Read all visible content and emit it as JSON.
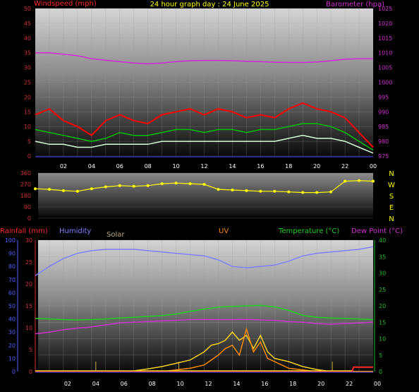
{
  "title": "24 hour graph day : 24 June 2025",
  "colors": {
    "background": "#000000",
    "windspeed_label": "#ff2a2a",
    "barometer_label": "#d030d0",
    "wind_gust": "#ff0000",
    "wind_avg": "#00c000",
    "wind_speed": "#d8ffd8",
    "barometer": "#d028d8",
    "direction": "#ffff00",
    "compass": "#ffff00",
    "rainfall": "#ff2a2a",
    "humidity": "#8080ff",
    "solar": "#b8a878",
    "uv": "#ff8a00",
    "temperature": "#20d020",
    "dewpoint": "#d030d0",
    "axis_left": "#d03030",
    "axis_right": "#d030d0",
    "axis_green": "#20c020",
    "axis_blue": "#5060ff",
    "xaxis": "#4040ff"
  },
  "legend": {
    "windspeed": "Windspeed (mph)",
    "barometer": "Barometer (hpa)",
    "rainfall": "Rainfall (mm)",
    "humidity": "Humidity",
    "solar": "Solar",
    "uv": "UV",
    "temperature": "Temperature (°C)",
    "dewpoint": "Dew Point (°C)"
  },
  "compass_labels": [
    "N",
    "W",
    "S",
    "E",
    "N"
  ],
  "chart_data": [
    {
      "type": "line",
      "name": "wind",
      "x_ticks": [
        "02",
        "04",
        "06",
        "08",
        "10",
        "12",
        "14",
        "16",
        "18",
        "20",
        "22",
        "00"
      ],
      "x_range": [
        0,
        24
      ],
      "y_left": {
        "label": "Windspeed (mph)",
        "range": [
          0,
          50
        ],
        "ticks": [
          0,
          5,
          10,
          15,
          20,
          25,
          30,
          35,
          40,
          45,
          50
        ]
      },
      "y_right": {
        "label": "Barometer (hpa)",
        "range": [
          975,
          1025
        ],
        "ticks": [
          975,
          980,
          985,
          990,
          995,
          1000,
          1005,
          1010,
          1015,
          1020,
          1025
        ]
      },
      "series": [
        {
          "name": "Barometer",
          "axis": "right",
          "x": [
            0,
            1,
            2,
            3,
            4,
            5,
            6,
            7,
            8,
            9,
            10,
            11,
            12,
            13,
            14,
            15,
            16,
            17,
            18,
            19,
            20,
            21,
            22,
            23,
            24
          ],
          "y": [
            1010,
            1010,
            1009.5,
            1009,
            1008,
            1007.5,
            1007,
            1006.5,
            1006.3,
            1006.5,
            1007,
            1007.3,
            1007.4,
            1007.4,
            1007.3,
            1007.1,
            1007,
            1006.8,
            1006.7,
            1006.7,
            1006.9,
            1007.3,
            1007.8,
            1008,
            1008
          ]
        },
        {
          "name": "Wind gust",
          "axis": "left",
          "x": [
            0,
            1,
            2,
            3,
            4,
            5,
            6,
            7,
            8,
            9,
            10,
            11,
            12,
            13,
            14,
            15,
            16,
            17,
            18,
            19,
            20,
            21,
            22,
            23,
            24
          ],
          "y": [
            14,
            16,
            12,
            10,
            7,
            12,
            14,
            12,
            11,
            14,
            15,
            16,
            14,
            16,
            15,
            13,
            14,
            13,
            16,
            18,
            16,
            15,
            13,
            8,
            3
          ]
        },
        {
          "name": "Wind avg",
          "axis": "left",
          "x": [
            0,
            1,
            2,
            3,
            4,
            5,
            6,
            7,
            8,
            9,
            10,
            11,
            12,
            13,
            14,
            15,
            16,
            17,
            18,
            19,
            20,
            21,
            22,
            23,
            24
          ],
          "y": [
            9,
            8,
            7,
            6,
            5,
            6,
            8,
            7,
            7,
            8,
            9,
            9,
            8,
            9,
            9,
            8,
            9,
            9,
            10,
            11,
            11,
            10,
            8,
            5,
            2
          ]
        },
        {
          "name": "Wind speed",
          "axis": "left",
          "x": [
            0,
            1,
            2,
            3,
            4,
            5,
            6,
            7,
            8,
            9,
            10,
            11,
            12,
            13,
            14,
            15,
            16,
            17,
            18,
            19,
            20,
            21,
            22,
            23,
            24
          ],
          "y": [
            5,
            4,
            4,
            3,
            3,
            4,
            4,
            4,
            4,
            5,
            5,
            5,
            5,
            5,
            5,
            5,
            5,
            5,
            6,
            7,
            6,
            6,
            5,
            3,
            1
          ]
        }
      ]
    },
    {
      "type": "scatter",
      "name": "wind direction",
      "x_range": [
        0,
        24
      ],
      "y_left": {
        "range": [
          0,
          360
        ],
        "ticks": [
          0,
          90,
          180,
          270,
          360
        ]
      },
      "series": [
        {
          "name": "Direction",
          "x": [
            0,
            1,
            2,
            3,
            4,
            5,
            6,
            7,
            8,
            9,
            10,
            11,
            12,
            13,
            14,
            15,
            16,
            17,
            18,
            19,
            20,
            21,
            22,
            23,
            24
          ],
          "y": [
            235,
            230,
            220,
            215,
            235,
            250,
            260,
            255,
            260,
            275,
            280,
            275,
            270,
            230,
            225,
            220,
            215,
            215,
            210,
            205,
            205,
            210,
            295,
            300,
            295
          ]
        }
      ]
    },
    {
      "type": "line",
      "name": "weather",
      "x_ticks": [
        "02",
        "04",
        "06",
        "08",
        "10",
        "12",
        "14",
        "16",
        "18",
        "20",
        "22",
        "00"
      ],
      "x_range": [
        0,
        24
      ],
      "y_humidity": {
        "label": "Humidity",
        "range": [
          0,
          100
        ],
        "ticks": [
          0,
          10,
          20,
          30,
          40,
          50,
          60,
          70,
          80,
          90,
          100
        ]
      },
      "y_rain": {
        "label": "Rainfall (mm)",
        "range": [
          0,
          30
        ],
        "ticks": [
          0,
          5,
          10,
          15,
          20,
          25,
          30
        ]
      },
      "y_temp": {
        "label": "Temperature (°C)",
        "range": [
          0,
          40
        ],
        "ticks": [
          0,
          5,
          10,
          15,
          20,
          25,
          30,
          35,
          40
        ]
      },
      "y_uv": {
        "label": "UV",
        "ticks": [
          0,
          5,
          10,
          15,
          20,
          25,
          30,
          35,
          40
        ]
      },
      "series": [
        {
          "name": "Humidity",
          "axis": "humidity",
          "x": [
            0,
            1,
            2,
            3,
            4,
            5,
            6,
            7,
            8,
            9,
            10,
            11,
            12,
            13,
            14,
            15,
            16,
            17,
            18,
            19,
            20,
            21,
            22,
            23,
            24
          ],
          "y": [
            73,
            80,
            86,
            90,
            92,
            93,
            93,
            93,
            92,
            91,
            90,
            89,
            88,
            85,
            80,
            79,
            80,
            81,
            84,
            88,
            90,
            91,
            92,
            93,
            95
          ]
        },
        {
          "name": "Temperature",
          "axis": "temp",
          "x": [
            0,
            1,
            2,
            3,
            4,
            5,
            6,
            7,
            8,
            9,
            10,
            11,
            12,
            13,
            14,
            15,
            16,
            17,
            18,
            19,
            20,
            21,
            22,
            23,
            24
          ],
          "y": [
            16.2,
            16,
            15.8,
            15.7,
            15.8,
            16,
            16.3,
            16.5,
            16.8,
            17,
            17.5,
            18.3,
            19,
            19.6,
            19.8,
            20,
            20.1,
            19.7,
            18.6,
            17.1,
            16.5,
            16.3,
            16.2,
            16,
            15.8
          ]
        },
        {
          "name": "Dew Point",
          "axis": "temp",
          "x": [
            0,
            1,
            2,
            3,
            4,
            5,
            6,
            7,
            8,
            9,
            10,
            11,
            12,
            13,
            14,
            15,
            16,
            17,
            18,
            19,
            20,
            21,
            22,
            23,
            24
          ],
          "y": [
            11.5,
            12,
            12.7,
            13.2,
            13.6,
            14.2,
            14.8,
            15,
            15.2,
            15.4,
            15.6,
            15.8,
            15.9,
            15.8,
            15.8,
            15.9,
            15.7,
            15.6,
            15.2,
            15,
            14.6,
            14.4,
            14.6,
            14.8,
            15
          ]
        },
        {
          "name": "Solar",
          "axis": "temp",
          "x": [
            0,
            4,
            6,
            7,
            8,
            9,
            10,
            11,
            12,
            12.5,
            13,
            13.5,
            14,
            14.5,
            15,
            15.5,
            16,
            16.5,
            17,
            18,
            19,
            20,
            21,
            24
          ],
          "y": [
            0,
            0,
            0,
            0.2,
            0.8,
            1.5,
            2.5,
            3.5,
            6,
            8,
            8.5,
            9.5,
            12,
            9.5,
            11,
            7,
            11,
            6,
            4,
            3,
            1.5,
            0.6,
            0,
            0
          ]
        },
        {
          "name": "UV",
          "axis": "temp",
          "x": [
            0,
            9,
            10,
            11,
            12,
            12.5,
            13,
            13.5,
            14,
            14.5,
            15,
            15.5,
            16,
            16.5,
            17,
            18,
            19,
            20,
            24
          ],
          "y": [
            0,
            0,
            0.5,
            1,
            2,
            3.5,
            5,
            7,
            8,
            5,
            13,
            6,
            9,
            4,
            3,
            1,
            0.5,
            0,
            0
          ]
        },
        {
          "name": "Rainfall",
          "axis": "rain",
          "x": [
            0,
            22.5,
            22.6,
            24
          ],
          "y": [
            0,
            0,
            1,
            1
          ]
        }
      ]
    }
  ]
}
